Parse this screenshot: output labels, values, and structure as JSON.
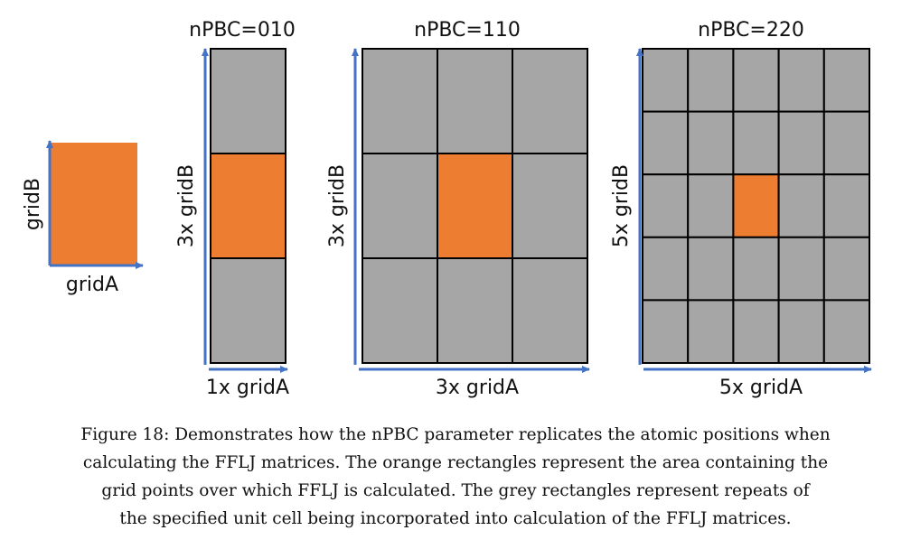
{
  "colors": {
    "cell_grey": "#a6a6a6",
    "cell_orange": "#ed7d31",
    "arrow_blue": "#4472c4",
    "grid_line": "#000000"
  },
  "unit_cell": {
    "a_label": "gridA",
    "b_label": "gridB"
  },
  "panels": [
    {
      "title": "nPBC=010",
      "columns": 1,
      "rows": 3,
      "a_label": "1x gridA",
      "b_label": "3x gridB"
    },
    {
      "title": "nPBC=110",
      "columns": 3,
      "rows": 3,
      "a_label": "3x gridA",
      "b_label": "3x gridB"
    },
    {
      "title": "nPBC=220",
      "columns": 5,
      "rows": 5,
      "a_label": "5x gridA",
      "b_label": "5x gridB"
    }
  ],
  "caption": {
    "line1": "Figure 18: Demonstrates how the nPBC parameter replicates the atomic positions when",
    "line2": "calculating the FFLJ matrices. The orange rectangles represent the area containing the",
    "line3": "grid points over which FFLJ is calculated. The grey rectangles represent repeats of",
    "line4": "the specified unit cell being incorporated into calculation of the FFLJ matrices."
  }
}
